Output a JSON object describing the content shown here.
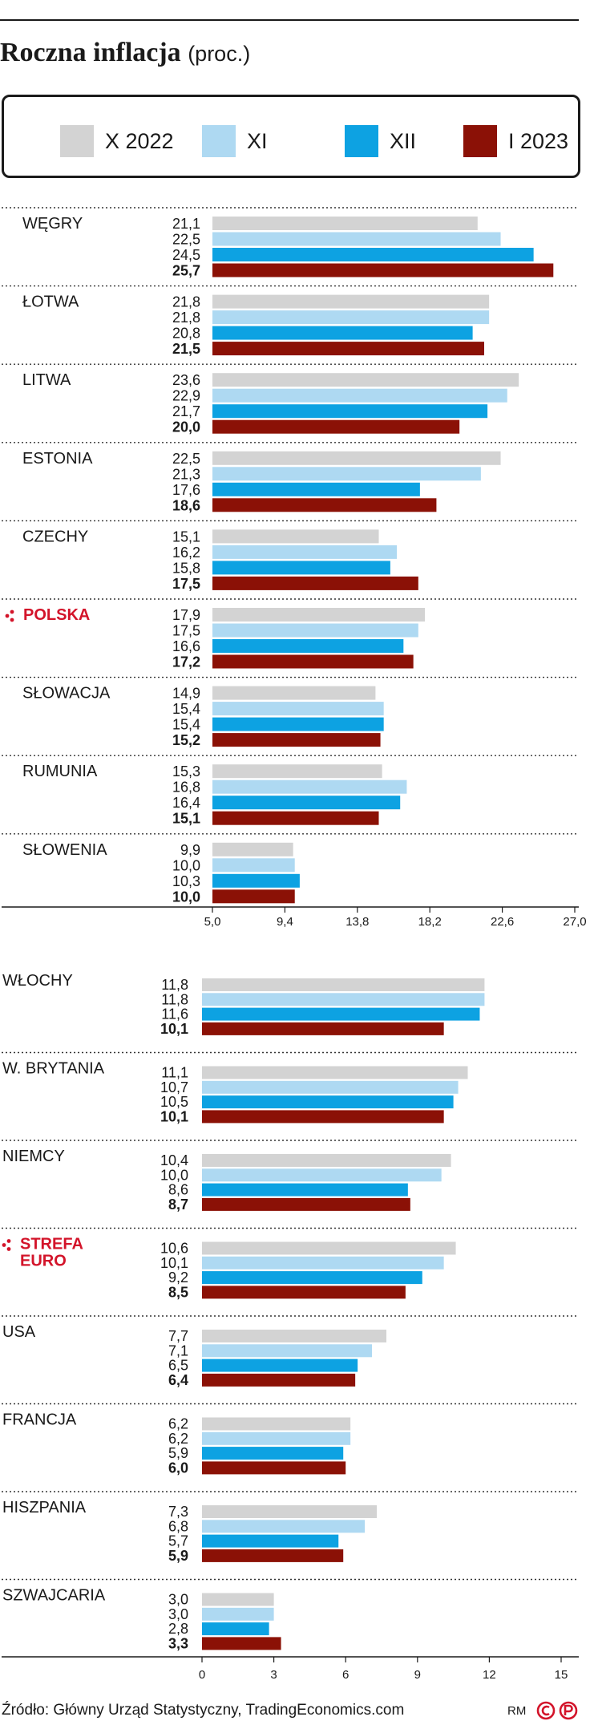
{
  "title": "Roczna inflacja",
  "title_unit": "(proc.)",
  "legend": [
    {
      "label": "X 2022",
      "color": "#d3d3d3"
    },
    {
      "label": "XI",
      "color": "#aed9f2"
    },
    {
      "label": "XII",
      "color": "#0da2e2"
    },
    {
      "label": "I 2023",
      "color": "#8b1106"
    }
  ],
  "highlight_color": "#d3142a",
  "source": "Źródło: Główny Urząd Statystyczny, TradingEconomics.com",
  "credit": "RM",
  "chart_data": [
    {
      "type": "bar",
      "orientation": "horizontal",
      "series_names": [
        "X 2022",
        "XI",
        "XII",
        "I 2023"
      ],
      "xlim": [
        5.0,
        27.0
      ],
      "ticks": [
        "5,0",
        "9,4",
        "13,8",
        "18,2",
        "22,6",
        "27,0"
      ],
      "tick_values": [
        5.0,
        9.4,
        13.8,
        18.2,
        22.6,
        27.0
      ],
      "groups": [
        {
          "label": "WĘGRY",
          "highlight": false,
          "values": [
            21.1,
            22.5,
            24.5,
            25.7
          ],
          "labels": [
            "21,1",
            "22,5",
            "24,5",
            "25,7"
          ]
        },
        {
          "label": "ŁOTWA",
          "highlight": false,
          "values": [
            21.8,
            21.8,
            20.8,
            21.5
          ],
          "labels": [
            "21,8",
            "21,8",
            "20,8",
            "21,5"
          ]
        },
        {
          "label": "LITWA",
          "highlight": false,
          "values": [
            23.6,
            22.9,
            21.7,
            20.0
          ],
          "labels": [
            "23,6",
            "22,9",
            "21,7",
            "20,0"
          ]
        },
        {
          "label": "ESTONIA",
          "highlight": false,
          "values": [
            22.5,
            21.3,
            17.6,
            18.6
          ],
          "labels": [
            "22,5",
            "21,3",
            "17,6",
            "18,6"
          ]
        },
        {
          "label": "CZECHY",
          "highlight": false,
          "values": [
            15.1,
            16.2,
            15.8,
            17.5
          ],
          "labels": [
            "15,1",
            "16,2",
            "15,8",
            "17,5"
          ]
        },
        {
          "label": "POLSKA",
          "highlight": true,
          "values": [
            17.9,
            17.5,
            16.6,
            17.2
          ],
          "labels": [
            "17,9",
            "17,5",
            "16,6",
            "17,2"
          ]
        },
        {
          "label": "SŁOWACJA",
          "highlight": false,
          "values": [
            14.9,
            15.4,
            15.4,
            15.2
          ],
          "labels": [
            "14,9",
            "15,4",
            "15,4",
            "15,2"
          ]
        },
        {
          "label": "RUMUNIA",
          "highlight": false,
          "values": [
            15.3,
            16.8,
            16.4,
            15.1
          ],
          "labels": [
            "15,3",
            "16,8",
            "16,4",
            "15,1"
          ]
        },
        {
          "label": "SŁOWENIA",
          "highlight": false,
          "values": [
            9.9,
            10.0,
            10.3,
            10.0
          ],
          "labels": [
            "9,9",
            "10,0",
            "10,3",
            "10,0"
          ]
        }
      ]
    },
    {
      "type": "bar",
      "orientation": "horizontal",
      "series_names": [
        "X 2022",
        "XI",
        "XII",
        "I 2023"
      ],
      "xlim": [
        0,
        15
      ],
      "ticks": [
        "0",
        "3",
        "6",
        "9",
        "12",
        "15"
      ],
      "tick_values": [
        0,
        3,
        6,
        9,
        12,
        15
      ],
      "groups": [
        {
          "label": "WŁOCHY",
          "highlight": false,
          "values": [
            11.8,
            11.8,
            11.6,
            10.1
          ],
          "labels": [
            "11,8",
            "11,8",
            "11,6",
            "10,1"
          ]
        },
        {
          "label": "W. BRYTANIA",
          "highlight": false,
          "values": [
            11.1,
            10.7,
            10.5,
            10.1
          ],
          "labels": [
            "11,1",
            "10,7",
            "10,5",
            "10,1"
          ]
        },
        {
          "label": "NIEMCY",
          "highlight": false,
          "values": [
            10.4,
            10.0,
            8.6,
            8.7
          ],
          "labels": [
            "10,4",
            "10,0",
            "8,6",
            "8,7"
          ]
        },
        {
          "label": "STREFA EURO",
          "highlight": true,
          "values": [
            10.6,
            10.1,
            9.2,
            8.5
          ],
          "labels": [
            "10,6",
            "10,1",
            "9,2",
            "8,5"
          ]
        },
        {
          "label": "USA",
          "highlight": false,
          "values": [
            7.7,
            7.1,
            6.5,
            6.4
          ],
          "labels": [
            "7,7",
            "7,1",
            "6,5",
            "6,4"
          ]
        },
        {
          "label": "FRANCJA",
          "highlight": false,
          "values": [
            6.2,
            6.2,
            5.9,
            6.0
          ],
          "labels": [
            "6,2",
            "6,2",
            "5,9",
            "6,0"
          ]
        },
        {
          "label": "HISZPANIA",
          "highlight": false,
          "values": [
            7.3,
            6.8,
            5.7,
            5.9
          ],
          "labels": [
            "7,3",
            "6,8",
            "5,7",
            "5,9"
          ]
        },
        {
          "label": "SZWAJCARIA",
          "highlight": false,
          "values": [
            3.0,
            3.0,
            2.8,
            3.3
          ],
          "labels": [
            "3,0",
            "3,0",
            "2,8",
            "3,3"
          ]
        }
      ]
    }
  ]
}
